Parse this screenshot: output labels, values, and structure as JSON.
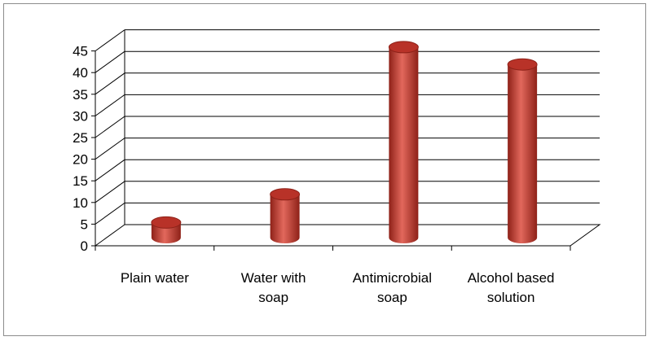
{
  "chart_data": {
    "type": "bar",
    "title": "",
    "xlabel": "",
    "ylabel": "",
    "categories": [
      [
        "Plain water"
      ],
      [
        "Water with",
        "soap"
      ],
      [
        "Antimicrobial",
        "soap"
      ],
      [
        "Alcohol based",
        "solution"
      ]
    ],
    "values": [
      3.5,
      10,
      44,
      40
    ],
    "ylim": [
      0,
      45
    ],
    "yticks": [
      "0",
      "5",
      "10",
      "15",
      "20",
      "25",
      "30",
      "35",
      "40",
      "45"
    ],
    "grid": true,
    "legend": "none",
    "bar_shape": "3d-cylinder",
    "colors": {
      "bar": "#c0392b",
      "bar_dark": "#8e2118",
      "bar_light": "#e2685c",
      "top": "#b83228",
      "grid": "#000000"
    }
  }
}
